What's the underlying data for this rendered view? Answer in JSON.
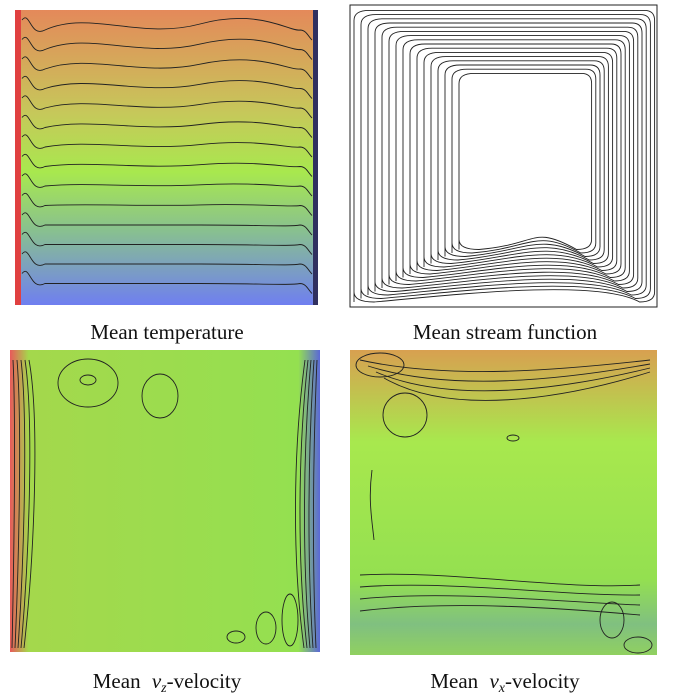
{
  "panels": [
    {
      "caption": {
        "text": "Mean temperature"
      }
    },
    {
      "caption": {
        "text": "Mean stream function"
      }
    },
    {
      "caption": {
        "prefix": "Mean",
        "var": "v",
        "sub": "z",
        "suffix": "-velocity"
      }
    },
    {
      "caption": {
        "prefix": "Mean",
        "var": "v",
        "sub": "x",
        "suffix": "-velocity"
      }
    }
  ]
}
